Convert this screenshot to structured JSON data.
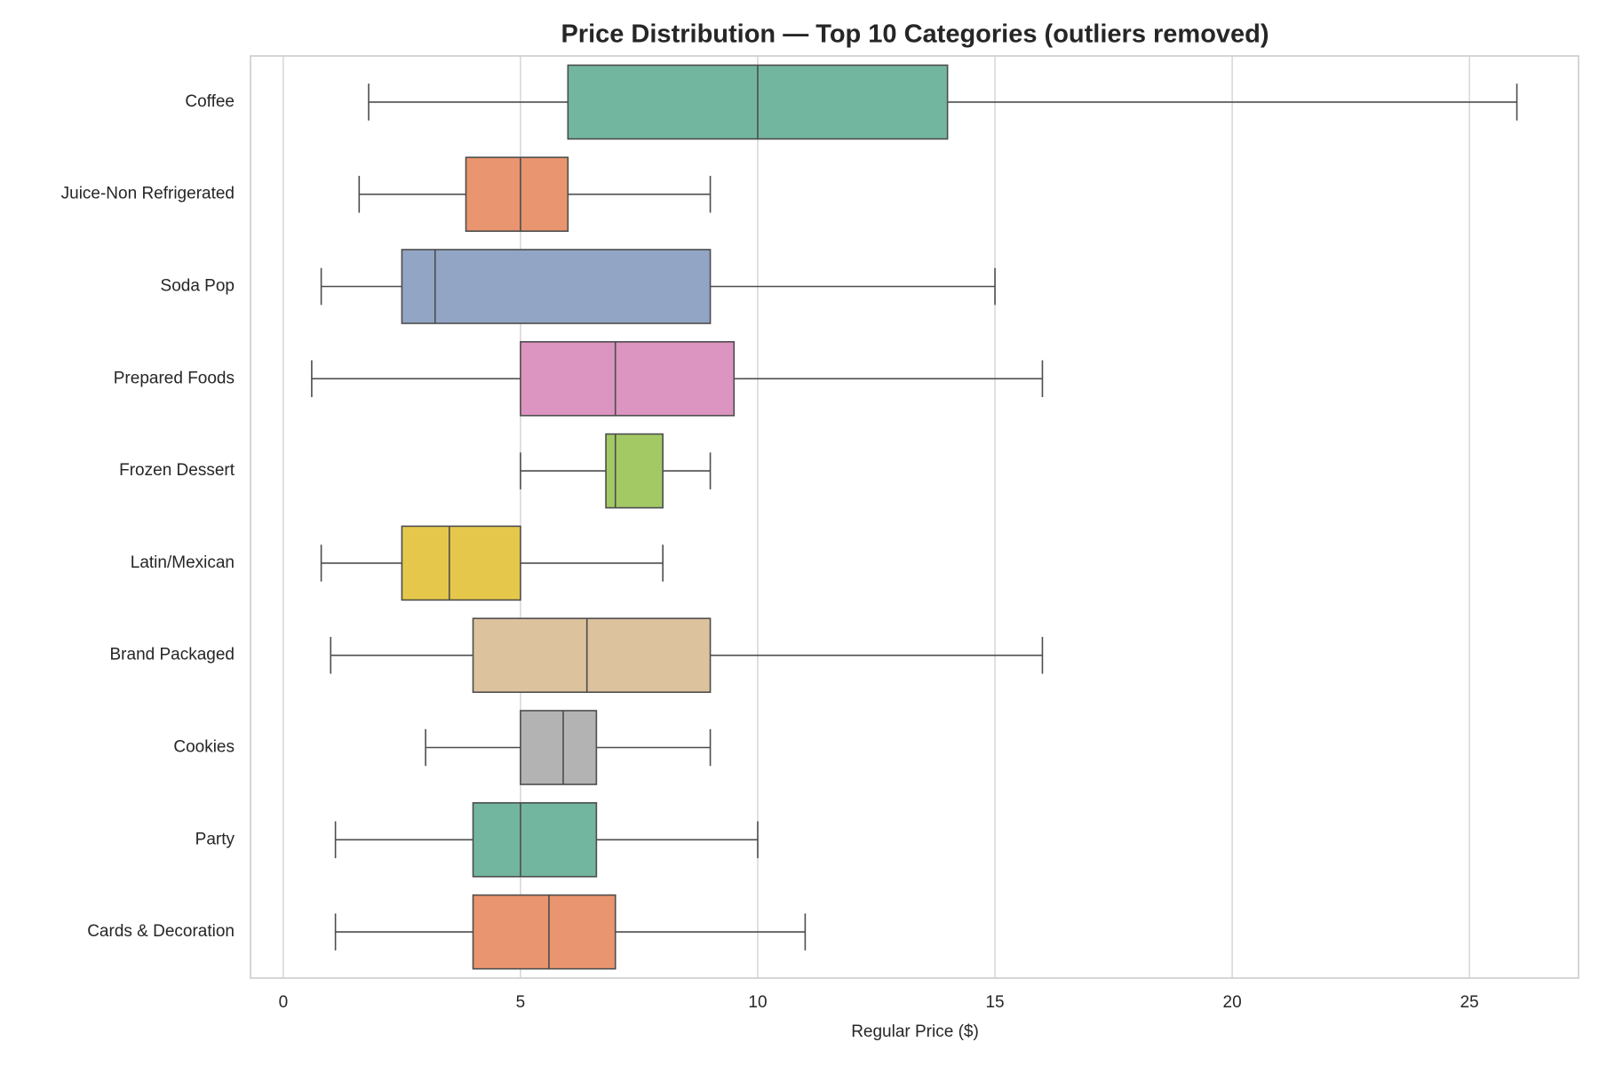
{
  "chart_data": {
    "type": "box",
    "orientation": "horizontal",
    "title": "Price Distribution — Top 10 Categories (outliers removed)",
    "x_label": "Regular Price ($)",
    "categories": [
      "Coffee",
      "Juice-Non Refrigerated",
      "Soda Pop",
      "Prepared Foods",
      "Frozen Dessert",
      "Latin/Mexican",
      "Brand Packaged",
      "Cookies",
      "Party",
      "Cards & Decoration"
    ],
    "boxes": [
      {
        "min": 1.8,
        "q1": 6,
        "median": 10,
        "q3": 14,
        "max": 26,
        "color": "#73b6a0"
      },
      {
        "min": 1.6,
        "q1": 3.85,
        "median": 5,
        "q3": 6,
        "max": 9,
        "color": "#e9956f"
      },
      {
        "min": 0.8,
        "q1": 2.5,
        "median": 3.2,
        "q3": 9,
        "max": 15,
        "color": "#93a5c5"
      },
      {
        "min": 0.6,
        "q1": 5,
        "median": 7,
        "q3": 9.5,
        "max": 16,
        "color": "#dc94c1"
      },
      {
        "min": 5,
        "q1": 6.8,
        "median": 7,
        "q3": 8,
        "max": 9,
        "color": "#a3c965"
      },
      {
        "min": 0.8,
        "q1": 2.5,
        "median": 3.5,
        "q3": 5,
        "max": 8,
        "color": "#e5c84b"
      },
      {
        "min": 1,
        "q1": 4,
        "median": 6.4,
        "q3": 9,
        "max": 16,
        "color": "#dcc39d"
      },
      {
        "min": 3,
        "q1": 5,
        "median": 5.9,
        "q3": 6.6,
        "max": 9,
        "color": "#b3b3b3"
      },
      {
        "min": 1.1,
        "q1": 4,
        "median": 5,
        "q3": 6.6,
        "max": 10,
        "color": "#73b6a0"
      },
      {
        "min": 1.1,
        "q1": 4,
        "median": 5.6,
        "q3": 7,
        "max": 11,
        "color": "#e9956f"
      }
    ],
    "xlim": [
      -0.69,
      27.3
    ],
    "xticks": [
      0,
      5,
      10,
      15,
      20,
      25
    ],
    "grid": true
  }
}
